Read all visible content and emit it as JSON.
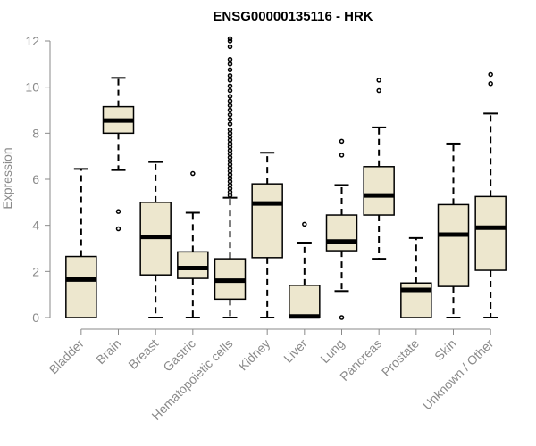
{
  "chart_data": {
    "type": "boxplot",
    "title": "ENSG00000135116 - HRK",
    "xlabel": "",
    "ylabel": "Expression",
    "ylim": [
      0,
      12
    ],
    "yticks": [
      0,
      2,
      4,
      6,
      8,
      10,
      12
    ],
    "box_fill": "#ede7ce",
    "categories": [
      "Bladder",
      "Brain",
      "Breast",
      "Gastric",
      "Hematopoietic cells",
      "Kidney",
      "Liver",
      "Lung",
      "Pancreas",
      "Prostate",
      "Skin",
      "Unknown / Other"
    ],
    "boxes": [
      {
        "name": "Bladder",
        "whisker_low": 0,
        "q1": 0,
        "median": 1.65,
        "q3": 2.65,
        "whisker_high": 6.45,
        "outliers": []
      },
      {
        "name": "Brain",
        "whisker_low": 6.4,
        "q1": 8.0,
        "median": 8.55,
        "q3": 9.15,
        "whisker_high": 10.4,
        "outliers": [
          4.6,
          3.85
        ]
      },
      {
        "name": "Breast",
        "whisker_low": 0,
        "q1": 1.85,
        "median": 3.5,
        "q3": 5.0,
        "whisker_high": 6.75,
        "outliers": []
      },
      {
        "name": "Gastric",
        "whisker_low": 0,
        "q1": 1.7,
        "median": 2.15,
        "q3": 2.85,
        "whisker_high": 4.55,
        "outliers": [
          6.25
        ]
      },
      {
        "name": "Hematopoietic cells",
        "whisker_low": 0,
        "q1": 0.8,
        "median": 1.6,
        "q3": 2.55,
        "whisker_high": 5.2,
        "outliers": [
          5.3,
          5.45,
          5.6,
          5.75,
          5.9,
          6.05,
          6.2,
          6.35,
          6.5,
          6.65,
          6.8,
          6.95,
          7.1,
          7.25,
          7.4,
          7.55,
          7.7,
          7.85,
          8.0,
          8.15,
          8.4,
          8.6,
          8.8,
          9.0,
          9.2,
          9.4,
          9.6,
          9.85,
          10.05,
          10.3,
          10.5,
          10.75,
          11.0,
          11.2,
          11.75,
          12.0,
          12.1
        ]
      },
      {
        "name": "Kidney",
        "whisker_low": 0,
        "q1": 2.6,
        "median": 4.95,
        "q3": 5.8,
        "whisker_high": 7.15,
        "outliers": []
      },
      {
        "name": "Liver",
        "whisker_low": 0,
        "q1": 0,
        "median": 0.05,
        "q3": 1.4,
        "whisker_high": 3.25,
        "outliers": [
          4.05
        ]
      },
      {
        "name": "Lung",
        "whisker_low": 1.15,
        "q1": 2.9,
        "median": 3.3,
        "q3": 4.45,
        "whisker_high": 5.75,
        "outliers": [
          7.05,
          7.65,
          0.0
        ]
      },
      {
        "name": "Pancreas",
        "whisker_low": 2.55,
        "q1": 4.45,
        "median": 5.3,
        "q3": 6.55,
        "whisker_high": 8.25,
        "outliers": [
          9.85,
          10.3
        ]
      },
      {
        "name": "Prostate",
        "whisker_low": 0,
        "q1": 0,
        "median": 1.2,
        "q3": 1.5,
        "whisker_high": 3.45,
        "outliers": []
      },
      {
        "name": "Skin",
        "whisker_low": 0,
        "q1": 1.35,
        "median": 3.6,
        "q3": 4.9,
        "whisker_high": 7.55,
        "outliers": []
      },
      {
        "name": "Unknown / Other",
        "whisker_low": 0,
        "q1": 2.05,
        "median": 3.9,
        "q3": 5.25,
        "whisker_high": 8.85,
        "outliers": [
          10.15,
          10.55
        ]
      }
    ]
  }
}
